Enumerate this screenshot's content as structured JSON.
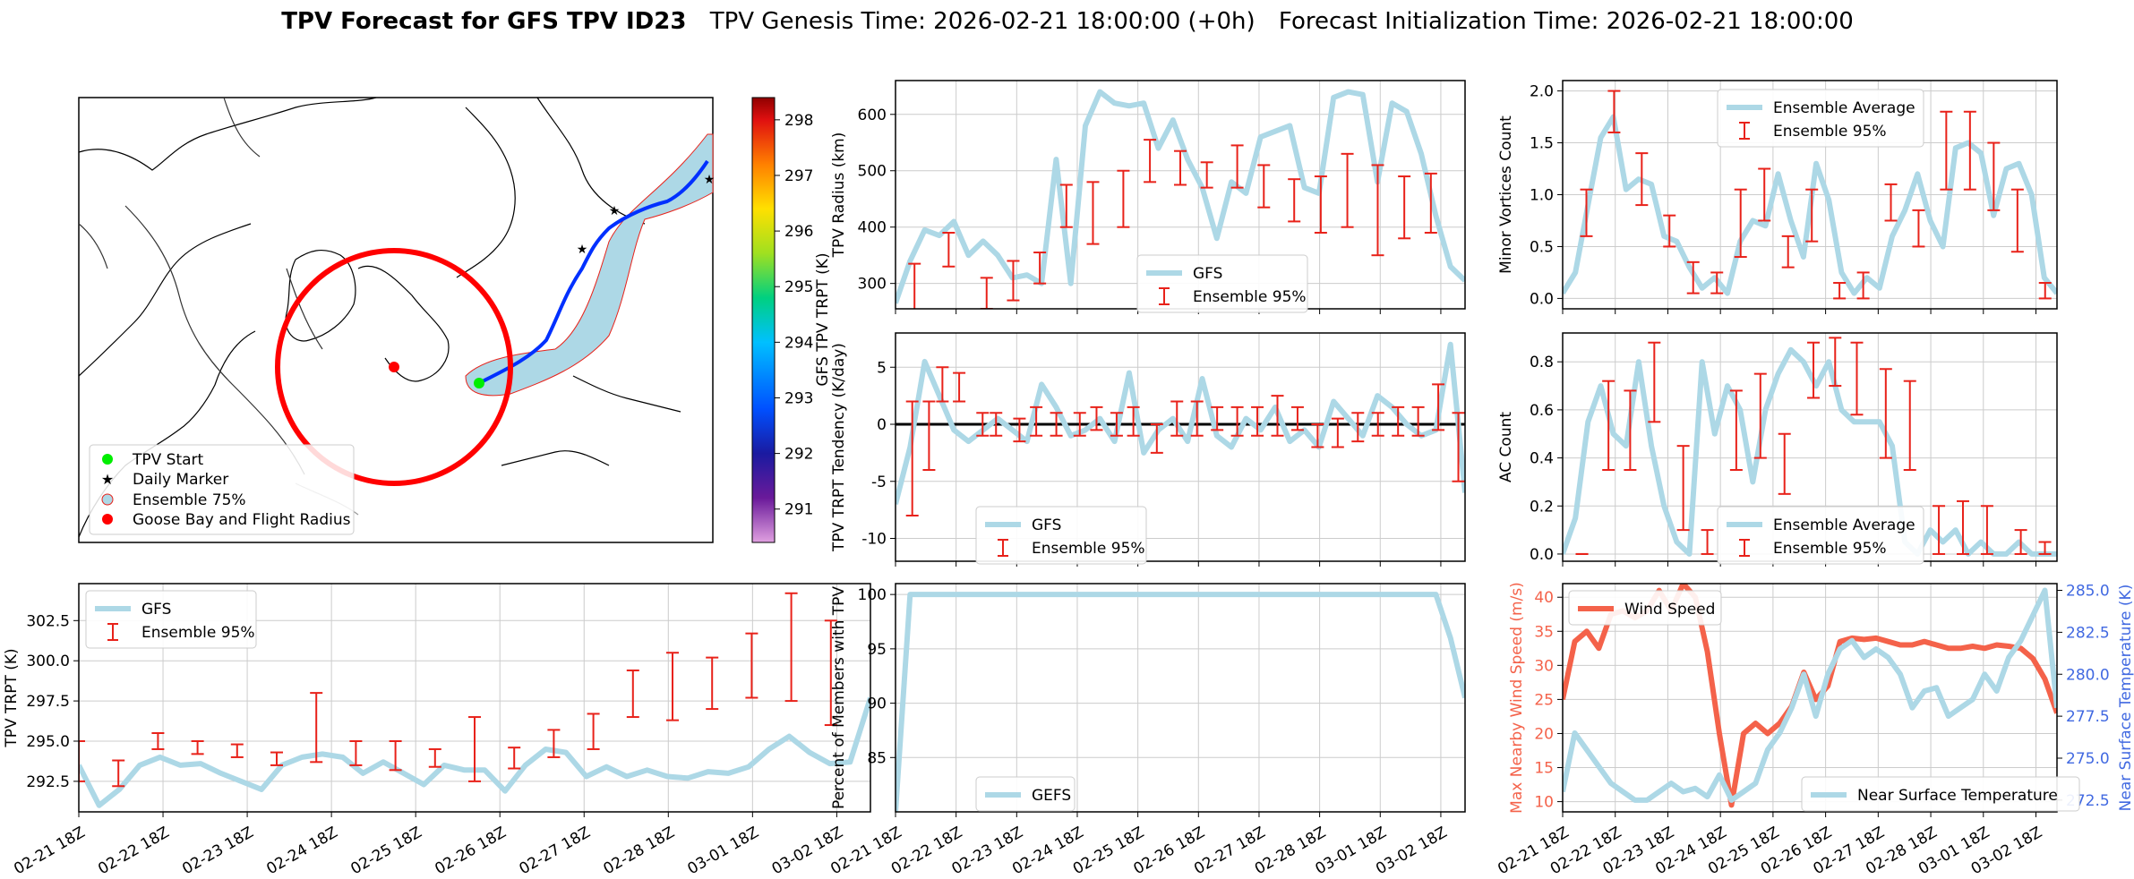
{
  "figure": {
    "title_bold": "TPV Forecast for GFS TPV ID23",
    "title_genesis": "TPV Genesis Time: 2026-02-21 18:00:00 (+0h)",
    "title_init": "Forecast Initialization Time: 2026-02-21 18:00:00"
  },
  "colors": {
    "series": "#add8e6",
    "error": "#e8221a",
    "wind": "#f4624a",
    "temp_axis": "#4169e1",
    "map_circle": "#ff0000",
    "tpv_start": "#00ee00",
    "daily_marker": "#ee00ee"
  },
  "time_ticks": [
    "02-21 18Z",
    "02-22 18Z",
    "02-23 18Z",
    "02-24 18Z",
    "02-25 18Z",
    "02-26 18Z",
    "02-27 18Z",
    "02-28 18Z",
    "03-01 18Z",
    "03-02 18Z"
  ],
  "map": {
    "legend": [
      "TPV Start",
      "Daily Marker",
      "Ensemble 75%",
      "Goose Bay and Flight Radius"
    ],
    "colorbar_label": "GFS TPV TRPT (K)",
    "colorbar_ticks": [
      "291",
      "292",
      "293",
      "294",
      "295",
      "296",
      "297",
      "298"
    ]
  },
  "chart_data": [
    {
      "id": "radius",
      "type": "line",
      "ylabel": "TPV Radius (km)",
      "ylim": [
        255,
        660
      ],
      "yticks": [
        300,
        400,
        500,
        600
      ],
      "legend": [
        "GFS",
        "Ensemble 95%"
      ],
      "series": [
        {
          "name": "GFS",
          "values": [
            265,
            340,
            395,
            385,
            410,
            350,
            375,
            350,
            310,
            315,
            300,
            520,
            300,
            580,
            640,
            620,
            615,
            620,
            540,
            590,
            520,
            470,
            380,
            480,
            460,
            560,
            570,
            580,
            470,
            460,
            630,
            640,
            635,
            480,
            620,
            605,
            530,
            420,
            330,
            305
          ]
        },
        {
          "name": "Ensemble 95%",
          "bars": [
            [
              0.05,
              250,
              335
            ],
            [
              0.14,
              330,
              390
            ],
            [
              0.24,
              255,
              310
            ],
            [
              0.31,
              270,
              340
            ],
            [
              0.38,
              300,
              355
            ],
            [
              0.45,
              400,
              475
            ],
            [
              0.52,
              370,
              480
            ],
            [
              0.6,
              400,
              500
            ],
            [
              0.67,
              480,
              555
            ],
            [
              0.75,
              475,
              535
            ],
            [
              0.82,
              470,
              515
            ],
            [
              0.9,
              470,
              545
            ],
            [
              0.97,
              435,
              510
            ],
            [
              1.05,
              410,
              485
            ],
            [
              1.12,
              390,
              490
            ],
            [
              1.19,
              400,
              530
            ],
            [
              1.27,
              350,
              510
            ],
            [
              1.34,
              380,
              490
            ],
            [
              1.41,
              390,
              495
            ]
          ]
        }
      ]
    },
    {
      "id": "minor_vortices",
      "type": "line",
      "ylabel": "Minor Vortices Count",
      "ylim": [
        -0.1,
        2.1
      ],
      "yticks": [
        0.0,
        0.5,
        1.0,
        1.5,
        2.0
      ],
      "legend": [
        "Ensemble Average",
        "Ensemble 95%"
      ],
      "series": [
        {
          "name": "Ensemble Average",
          "values": [
            0.05,
            0.25,
            0.9,
            1.55,
            1.75,
            1.05,
            1.15,
            1.1,
            0.6,
            0.55,
            0.3,
            0.1,
            0.2,
            0.05,
            0.55,
            0.75,
            0.7,
            1.2,
            0.75,
            0.4,
            1.3,
            0.95,
            0.25,
            0.05,
            0.2,
            0.1,
            0.6,
            0.85,
            1.2,
            0.75,
            0.5,
            1.45,
            1.5,
            1.4,
            0.8,
            1.25,
            1.3,
            1.0,
            0.2,
            0.05
          ]
        },
        {
          "name": "Ensemble 95%",
          "bars": [
            [
              0.12,
              0.6,
              1.05
            ],
            [
              0.26,
              1.6,
              2.0
            ],
            [
              0.4,
              0.9,
              1.4
            ],
            [
              0.54,
              0.5,
              0.8
            ],
            [
              0.66,
              0.05,
              0.35
            ],
            [
              0.78,
              0.05,
              0.25
            ],
            [
              0.9,
              0.4,
              1.05
            ],
            [
              1.02,
              0.75,
              1.25
            ],
            [
              1.14,
              0.3,
              0.6
            ],
            [
              1.26,
              0.55,
              1.05
            ],
            [
              1.4,
              0.0,
              0.15
            ],
            [
              1.52,
              0.0,
              0.25
            ],
            [
              1.66,
              0.75,
              1.1
            ],
            [
              1.8,
              0.5,
              0.85
            ],
            [
              1.94,
              1.05,
              1.8
            ],
            [
              2.06,
              1.05,
              1.8
            ],
            [
              2.18,
              0.85,
              1.5
            ],
            [
              2.3,
              0.45,
              1.05
            ],
            [
              2.44,
              0.0,
              0.15
            ]
          ]
        }
      ]
    },
    {
      "id": "tendency",
      "type": "line",
      "ylabel": "TPV TRPT Tendency (K/day)",
      "ylim": [
        -12,
        8
      ],
      "yticks": [
        -10,
        -5,
        0,
        5
      ],
      "legend": [
        "GFS",
        "Ensemble 95%"
      ],
      "series": [
        {
          "name": "GFS",
          "values": [
            -7,
            -2,
            5.5,
            2.5,
            -0.5,
            -1.5,
            -0.5,
            0.5,
            -0.5,
            -1.5,
            3.5,
            1.5,
            -1,
            -0.5,
            0.5,
            -1.5,
            4.5,
            -2.5,
            -0.5,
            0.5,
            -1.5,
            4,
            -1,
            -2,
            0.5,
            -0.5,
            1.5,
            -1.5,
            -0.5,
            -2,
            2,
            0.5,
            -1,
            2.5,
            1.5,
            0,
            -1,
            -0.5,
            7,
            -6
          ]
        },
        {
          "name": "Ensemble 95%",
          "bars": [
            [
              0.05,
              -8,
              2
            ],
            [
              0.1,
              -4,
              2
            ],
            [
              0.14,
              2,
              5
            ],
            [
              0.19,
              2,
              4.5
            ],
            [
              0.26,
              -1,
              1
            ],
            [
              0.3,
              -1,
              1
            ],
            [
              0.37,
              -1.5,
              0.5
            ],
            [
              0.42,
              -1,
              1.5
            ],
            [
              0.48,
              -1,
              1
            ],
            [
              0.55,
              -1,
              1
            ],
            [
              0.6,
              -0.5,
              1.5
            ],
            [
              0.66,
              -1,
              1
            ],
            [
              0.71,
              -1,
              1.5
            ],
            [
              0.78,
              -2.5,
              0
            ],
            [
              0.84,
              -1,
              2
            ],
            [
              0.9,
              -1,
              2
            ],
            [
              0.96,
              -0.5,
              1.5
            ],
            [
              1.02,
              -1,
              1.5
            ],
            [
              1.08,
              -1,
              1.5
            ],
            [
              1.14,
              -1,
              2.5
            ],
            [
              1.2,
              -0.5,
              1.5
            ],
            [
              1.26,
              -2,
              0
            ],
            [
              1.32,
              -2,
              0.5
            ],
            [
              1.38,
              -1.5,
              1
            ],
            [
              1.44,
              -1,
              1
            ],
            [
              1.5,
              -1,
              1.5
            ],
            [
              1.56,
              -1,
              1.5
            ],
            [
              1.62,
              -0.5,
              3.5
            ],
            [
              1.68,
              -5,
              1
            ]
          ]
        }
      ]
    },
    {
      "id": "ac_count",
      "type": "line",
      "ylabel": "AC Count",
      "ylim": [
        -0.03,
        0.92
      ],
      "yticks": [
        0.0,
        0.2,
        0.4,
        0.6,
        0.8
      ],
      "legend": [
        "Ensemble Average",
        "Ensemble 95%"
      ],
      "series": [
        {
          "name": "Ensemble Average",
          "values": [
            0.0,
            0.15,
            0.55,
            0.7,
            0.5,
            0.45,
            0.8,
            0.45,
            0.2,
            0.05,
            0.0,
            0.8,
            0.5,
            0.7,
            0.6,
            0.3,
            0.6,
            0.75,
            0.85,
            0.8,
            0.7,
            0.8,
            0.6,
            0.55,
            0.55,
            0.55,
            0.45,
            0.05,
            0.0,
            0.1,
            0.05,
            0.1,
            0.0,
            0.05,
            0.0,
            0.0,
            0.05,
            0.0,
            0.0,
            0.0
          ]
        },
        {
          "name": "Ensemble 95%",
          "bars": [
            [
              0.08,
              0.0,
              0.0
            ],
            [
              0.19,
              0.35,
              0.72
            ],
            [
              0.28,
              0.35,
              0.68
            ],
            [
              0.38,
              0.55,
              0.88
            ],
            [
              0.5,
              0.1,
              0.45
            ],
            [
              0.6,
              0.0,
              0.1
            ],
            [
              0.72,
              0.35,
              0.68
            ],
            [
              0.82,
              0.4,
              0.75
            ],
            [
              0.92,
              0.25,
              0.5
            ],
            [
              1.04,
              0.65,
              0.88
            ],
            [
              1.13,
              0.7,
              0.9
            ],
            [
              1.22,
              0.58,
              0.88
            ],
            [
              1.34,
              0.4,
              0.77
            ],
            [
              1.44,
              0.35,
              0.72
            ],
            [
              1.56,
              0.0,
              0.2
            ],
            [
              1.66,
              0.0,
              0.22
            ],
            [
              1.76,
              0.0,
              0.2
            ],
            [
              1.9,
              0.0,
              0.1
            ],
            [
              2.0,
              0.0,
              0.05
            ]
          ]
        }
      ]
    },
    {
      "id": "trpt",
      "type": "line",
      "ylabel": "TPV TRPT (K)",
      "ylim": [
        290.6,
        304.8
      ],
      "yticks": [
        292.5,
        295.0,
        297.5,
        300.0,
        302.5
      ],
      "legend": [
        "GFS",
        "Ensemble 95%"
      ],
      "series": [
        {
          "name": "GFS",
          "values": [
            293.5,
            291,
            292,
            293.5,
            294,
            293.5,
            293.6,
            293,
            292.5,
            292,
            293.5,
            294,
            294.2,
            294,
            293,
            293.7,
            293,
            292.3,
            293.5,
            293.2,
            293.2,
            291.9,
            293.5,
            294.5,
            294.3,
            292.8,
            293.4,
            292.8,
            293.2,
            292.8,
            292.7,
            293.1,
            293,
            293.4,
            294.5,
            295.3,
            294.3,
            293.6,
            293.7,
            297.7
          ]
        },
        {
          "name": "Ensemble 95%",
          "bars": [
            [
              0.0,
              292.5,
              295
            ],
            [
              0.5,
              292.2,
              293.8
            ],
            [
              1.0,
              294.5,
              295.5
            ],
            [
              1.5,
              294.2,
              295
            ],
            [
              2.0,
              294,
              294.8
            ],
            [
              2.5,
              293.5,
              294.3
            ],
            [
              3.0,
              293.7,
              298
            ],
            [
              3.5,
              293.5,
              295
            ],
            [
              4.0,
              293.2,
              295
            ],
            [
              4.5,
              293.4,
              294.5
            ],
            [
              5.0,
              292.5,
              296.5
            ],
            [
              5.5,
              293.3,
              294.6
            ],
            [
              6.0,
              294,
              295.7
            ],
            [
              6.5,
              294.5,
              296.7
            ],
            [
              7.0,
              296.5,
              299.4
            ],
            [
              7.5,
              296.3,
              300.5
            ],
            [
              8.0,
              297,
              300.2
            ],
            [
              8.5,
              297.7,
              301.7
            ],
            [
              9.0,
              297.5,
              304.2
            ],
            [
              9.5,
              296,
              302.5
            ]
          ]
        }
      ]
    },
    {
      "id": "percent",
      "type": "line",
      "ylabel": "Percent of Members with TPV",
      "ylim": [
        80,
        101
      ],
      "yticks": [
        85,
        90,
        95,
        100
      ],
      "legend": [
        "GEFS"
      ],
      "series": [
        {
          "name": "GEFS",
          "values": [
            80,
            100,
            100,
            100,
            100,
            100,
            100,
            100,
            100,
            100,
            100,
            100,
            100,
            100,
            100,
            100,
            100,
            100,
            100,
            100,
            100,
            100,
            100,
            100,
            100,
            100,
            100,
            100,
            100,
            100,
            100,
            100,
            100,
            100,
            100,
            100,
            100,
            100,
            96,
            90.5
          ]
        }
      ]
    },
    {
      "id": "wind_temp",
      "type": "line",
      "ylabel": "Max Nearby Wind Speed (m/s)",
      "y2label": "Near Surface Temperature (K)",
      "ylim": [
        8.5,
        42
      ],
      "yticks": [
        10,
        15,
        20,
        25,
        30,
        35,
        40
      ],
      "y2lim": [
        271.8,
        285.4
      ],
      "y2ticks": [
        272.5,
        275.0,
        277.5,
        280.0,
        282.5,
        285.0
      ],
      "legend": [
        "Wind Speed",
        "Near Surface Temperature"
      ],
      "series": [
        {
          "name": "Wind Speed",
          "values": [
            25,
            33.5,
            35,
            32.5,
            37.5,
            38,
            37,
            38,
            41,
            38,
            42,
            40,
            32,
            20,
            9.5,
            20,
            21.5,
            20,
            21.5,
            24,
            29,
            25,
            27,
            33.5,
            34,
            33.8,
            34,
            33.5,
            33,
            33,
            33.5,
            33,
            32.5,
            32.5,
            32.8,
            32.5,
            33,
            32.8,
            32.5,
            31,
            28,
            23
          ]
        },
        {
          "name": "Near Surface Temperature",
          "values": [
            273,
            276.5,
            275.5,
            274.5,
            273.5,
            273,
            272.5,
            272.5,
            273,
            273.5,
            273,
            273.2,
            272.7,
            274,
            272.5,
            273,
            273.5,
            275.5,
            276.5,
            278,
            280,
            277.5,
            280,
            281.5,
            282,
            281,
            281.5,
            281,
            280,
            278,
            279,
            279.2,
            277.5,
            278,
            278.5,
            280,
            279,
            281,
            282,
            283.5,
            285,
            278
          ]
        }
      ]
    }
  ]
}
